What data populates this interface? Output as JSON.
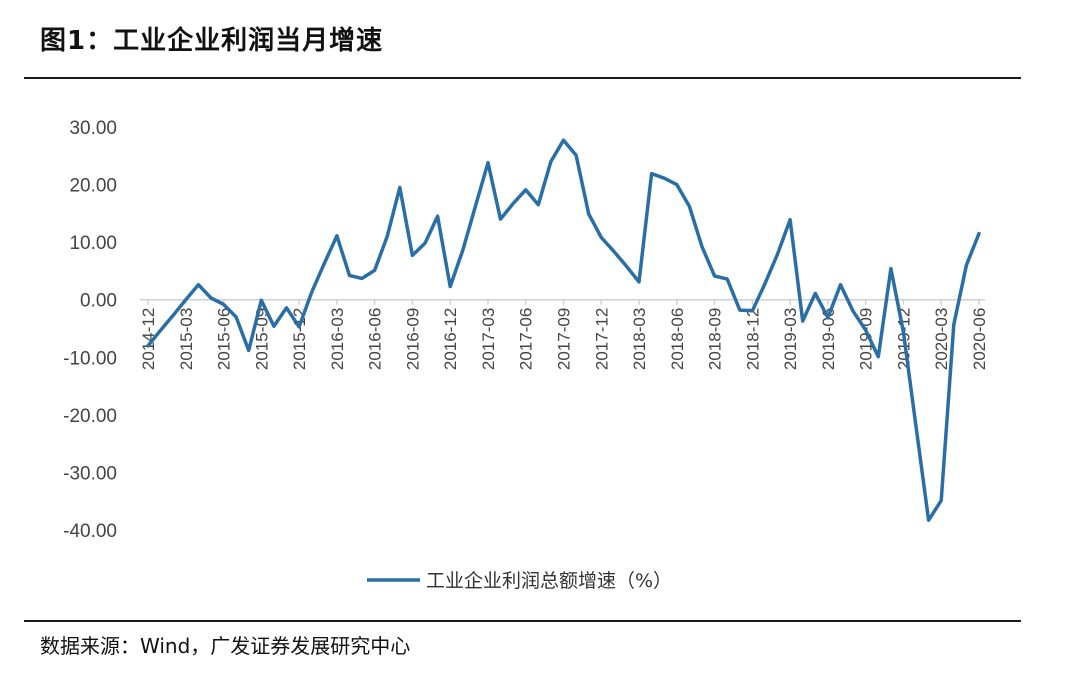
{
  "figure": {
    "title": "图1：工业企业利润当月增速",
    "source": "数据来源：Wind，广发证券发展研究中心"
  },
  "chart_data": {
    "type": "line",
    "title": "",
    "xlabel": "",
    "ylabel": "",
    "ylim": [
      -40,
      30
    ],
    "yticks": [
      30,
      20,
      10,
      0,
      -10,
      -20,
      -30,
      -40
    ],
    "ytick_labels": [
      "30.00",
      "20.00",
      "10.00",
      "0.00",
      "-10.00",
      "-20.00",
      "-30.00",
      "-40.00"
    ],
    "x": [
      "2014-12",
      "2015-01",
      "2015-02",
      "2015-03",
      "2015-04",
      "2015-05",
      "2015-06",
      "2015-07",
      "2015-08",
      "2015-09",
      "2015-10",
      "2015-11",
      "2015-12",
      "2016-01",
      "2016-02",
      "2016-03",
      "2016-04",
      "2016-05",
      "2016-06",
      "2016-07",
      "2016-08",
      "2016-09",
      "2016-10",
      "2016-11",
      "2016-12",
      "2017-01",
      "2017-02",
      "2017-03",
      "2017-04",
      "2017-05",
      "2017-06",
      "2017-07",
      "2017-08",
      "2017-09",
      "2017-10",
      "2017-11",
      "2017-12",
      "2018-01",
      "2018-02",
      "2018-03",
      "2018-04",
      "2018-05",
      "2018-06",
      "2018-07",
      "2018-08",
      "2018-09",
      "2018-10",
      "2018-11",
      "2018-12",
      "2019-01",
      "2019-02",
      "2019-03",
      "2019-04",
      "2019-05",
      "2019-06",
      "2019-07",
      "2019-08",
      "2019-09",
      "2019-10",
      "2019-11",
      "2019-12",
      "2020-01",
      "2020-02",
      "2020-03",
      "2020-04",
      "2020-05",
      "2020-06"
    ],
    "xtick_labels": [
      "2014-12",
      "2015-03",
      "2015-06",
      "2015-09",
      "2015-12",
      "2016-03",
      "2016-06",
      "2016-09",
      "2016-12",
      "2017-03",
      "2017-06",
      "2017-09",
      "2017-12",
      "2018-03",
      "2018-06",
      "2018-09",
      "2018-12",
      "2019-03",
      "2019-06",
      "2019-09",
      "2019-12",
      "2020-03",
      "2020-06"
    ],
    "series": [
      {
        "name": "工业企业利润总额增速（%）",
        "color": "#2a6ea6",
        "values": [
          -8.0,
          -5.3,
          -2.7,
          0.0,
          2.6,
          0.3,
          -0.8,
          -3.0,
          -8.8,
          -0.1,
          -4.6,
          -1.4,
          -4.7,
          1.3,
          6.3,
          11.1,
          4.2,
          3.7,
          5.1,
          11.0,
          19.5,
          7.7,
          9.8,
          14.5,
          2.3,
          8.6,
          16.2,
          23.8,
          14.0,
          16.7,
          19.1,
          16.5,
          24.0,
          27.7,
          25.1,
          14.9,
          10.8,
          8.4,
          5.8,
          3.1,
          21.9,
          21.1,
          20.0,
          16.2,
          9.2,
          4.1,
          3.6,
          -1.8,
          -1.9,
          2.8,
          7.9,
          13.9,
          -3.7,
          1.1,
          -3.1,
          2.6,
          -2.0,
          -5.3,
          -9.9,
          5.4,
          -5.7,
          -22.0,
          -38.3,
          -34.9,
          -4.3,
          6.0,
          11.5
        ]
      }
    ],
    "grid": false,
    "legend": "bottom-center"
  }
}
